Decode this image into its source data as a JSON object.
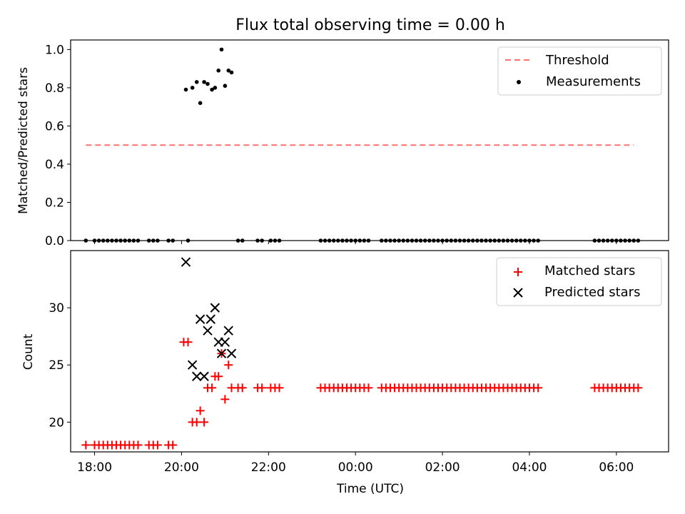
{
  "chart_data": [
    {
      "type": "scatter",
      "title": "Flux total observing time = 0.00 h",
      "ylabel": "Matched/Predicted stars",
      "xlabel": "",
      "x_unit": "hours since 18:00 UTC (ticks labeled HH:MM)",
      "xlim": [
        -0.55,
        13.2
      ],
      "ylim": [
        0.0,
        1.05
      ],
      "yticks": [
        0.0,
        0.2,
        0.4,
        0.6,
        0.8,
        1.0
      ],
      "legend_position": "top-right",
      "threshold": {
        "name": "Threshold",
        "value": 0.5,
        "x_range": [
          -0.2,
          12.4
        ],
        "color": "#ff7070"
      },
      "series": [
        {
          "name": "Measurements",
          "color": "#000000",
          "points": [
            [
              -0.2,
              0
            ],
            [
              0.0,
              0
            ],
            [
              0.1,
              0
            ],
            [
              0.2,
              0
            ],
            [
              0.3,
              0
            ],
            [
              0.4,
              0
            ],
            [
              0.5,
              0
            ],
            [
              0.6,
              0
            ],
            [
              0.7,
              0
            ],
            [
              0.8,
              0
            ],
            [
              0.9,
              0
            ],
            [
              1.0,
              0
            ],
            [
              1.25,
              0
            ],
            [
              1.35,
              0
            ],
            [
              1.45,
              0
            ],
            [
              1.7,
              0
            ],
            [
              1.8,
              0
            ],
            [
              2.15,
              0
            ],
            [
              2.1,
              0.79
            ],
            [
              2.25,
              0.8
            ],
            [
              2.35,
              0.83
            ],
            [
              2.43,
              0.72
            ],
            [
              2.52,
              0.83
            ],
            [
              2.6,
              0.82
            ],
            [
              2.7,
              0.79
            ],
            [
              2.77,
              0.8
            ],
            [
              2.85,
              0.89
            ],
            [
              2.92,
              1.0
            ],
            [
              3.0,
              0.81
            ],
            [
              3.08,
              0.89
            ],
            [
              3.15,
              0.88
            ],
            [
              3.3,
              0
            ],
            [
              3.4,
              0
            ],
            [
              3.75,
              0
            ],
            [
              3.85,
              0
            ],
            [
              4.05,
              0
            ],
            [
              4.15,
              0
            ],
            [
              4.25,
              0
            ],
            [
              5.2,
              0
            ],
            [
              5.3,
              0
            ],
            [
              5.4,
              0
            ],
            [
              5.5,
              0
            ],
            [
              5.6,
              0
            ],
            [
              5.7,
              0
            ],
            [
              5.8,
              0
            ],
            [
              5.9,
              0
            ],
            [
              6.0,
              0
            ],
            [
              6.1,
              0
            ],
            [
              6.2,
              0
            ],
            [
              6.3,
              0
            ],
            [
              6.6,
              0
            ],
            [
              6.7,
              0
            ],
            [
              6.8,
              0
            ],
            [
              6.9,
              0
            ],
            [
              7.0,
              0
            ],
            [
              7.1,
              0
            ],
            [
              7.2,
              0
            ],
            [
              7.3,
              0
            ],
            [
              7.4,
              0
            ],
            [
              7.5,
              0
            ],
            [
              7.6,
              0
            ],
            [
              7.7,
              0
            ],
            [
              7.8,
              0
            ],
            [
              7.9,
              0
            ],
            [
              8.0,
              0
            ],
            [
              8.1,
              0
            ],
            [
              8.2,
              0
            ],
            [
              8.3,
              0
            ],
            [
              8.4,
              0
            ],
            [
              8.5,
              0
            ],
            [
              8.6,
              0
            ],
            [
              8.7,
              0
            ],
            [
              8.8,
              0
            ],
            [
              8.9,
              0
            ],
            [
              9.0,
              0
            ],
            [
              9.1,
              0
            ],
            [
              9.2,
              0
            ],
            [
              9.3,
              0
            ],
            [
              9.4,
              0
            ],
            [
              9.5,
              0
            ],
            [
              9.6,
              0
            ],
            [
              9.7,
              0
            ],
            [
              9.8,
              0
            ],
            [
              9.9,
              0
            ],
            [
              10.0,
              0
            ],
            [
              10.1,
              0
            ],
            [
              10.2,
              0
            ],
            [
              11.5,
              0
            ],
            [
              11.6,
              0
            ],
            [
              11.7,
              0
            ],
            [
              11.8,
              0
            ],
            [
              11.9,
              0
            ],
            [
              12.0,
              0
            ],
            [
              12.1,
              0
            ],
            [
              12.2,
              0
            ],
            [
              12.3,
              0
            ],
            [
              12.4,
              0
            ],
            [
              12.5,
              0
            ]
          ]
        }
      ]
    },
    {
      "type": "scatter",
      "title": "",
      "ylabel": "Count",
      "xlabel": "Time (UTC)",
      "x_unit": "hours since 18:00 UTC (ticks labeled HH:MM)",
      "xlim": [
        -0.55,
        13.2
      ],
      "ylim": [
        17.4,
        35.0
      ],
      "yticks": [
        20,
        25,
        30
      ],
      "xticks": [
        0,
        2,
        4,
        6,
        8,
        10,
        12
      ],
      "xtick_labels": [
        "18:00",
        "20:00",
        "22:00",
        "00:00",
        "02:00",
        "04:00",
        "06:00"
      ],
      "legend_position": "top-right",
      "series": [
        {
          "name": "Matched stars",
          "marker": "plus",
          "color": "#ff0000",
          "points": [
            [
              -0.2,
              18
            ],
            [
              0.0,
              18
            ],
            [
              0.1,
              18
            ],
            [
              0.2,
              18
            ],
            [
              0.3,
              18
            ],
            [
              0.4,
              18
            ],
            [
              0.5,
              18
            ],
            [
              0.6,
              18
            ],
            [
              0.7,
              18
            ],
            [
              0.8,
              18
            ],
            [
              0.9,
              18
            ],
            [
              1.0,
              18
            ],
            [
              1.25,
              18
            ],
            [
              1.35,
              18
            ],
            [
              1.45,
              18
            ],
            [
              1.7,
              18
            ],
            [
              1.8,
              18
            ],
            [
              2.05,
              27
            ],
            [
              2.15,
              27
            ],
            [
              2.25,
              20
            ],
            [
              2.35,
              20
            ],
            [
              2.43,
              21
            ],
            [
              2.52,
              20
            ],
            [
              2.6,
              23
            ],
            [
              2.7,
              23
            ],
            [
              2.77,
              24
            ],
            [
              2.85,
              24
            ],
            [
              2.92,
              26
            ],
            [
              3.0,
              22
            ],
            [
              3.08,
              25
            ],
            [
              3.15,
              23
            ],
            [
              3.3,
              23
            ],
            [
              3.4,
              23
            ],
            [
              3.75,
              23
            ],
            [
              3.85,
              23
            ],
            [
              4.05,
              23
            ],
            [
              4.15,
              23
            ],
            [
              4.25,
              23
            ],
            [
              5.2,
              23
            ],
            [
              5.3,
              23
            ],
            [
              5.4,
              23
            ],
            [
              5.5,
              23
            ],
            [
              5.6,
              23
            ],
            [
              5.7,
              23
            ],
            [
              5.8,
              23
            ],
            [
              5.9,
              23
            ],
            [
              6.0,
              23
            ],
            [
              6.1,
              23
            ],
            [
              6.2,
              23
            ],
            [
              6.3,
              23
            ],
            [
              6.6,
              23
            ],
            [
              6.7,
              23
            ],
            [
              6.8,
              23
            ],
            [
              6.9,
              23
            ],
            [
              7.0,
              23
            ],
            [
              7.1,
              23
            ],
            [
              7.2,
              23
            ],
            [
              7.3,
              23
            ],
            [
              7.4,
              23
            ],
            [
              7.5,
              23
            ],
            [
              7.6,
              23
            ],
            [
              7.7,
              23
            ],
            [
              7.8,
              23
            ],
            [
              7.9,
              23
            ],
            [
              8.0,
              23
            ],
            [
              8.1,
              23
            ],
            [
              8.2,
              23
            ],
            [
              8.3,
              23
            ],
            [
              8.4,
              23
            ],
            [
              8.5,
              23
            ],
            [
              8.6,
              23
            ],
            [
              8.7,
              23
            ],
            [
              8.8,
              23
            ],
            [
              8.9,
              23
            ],
            [
              9.0,
              23
            ],
            [
              9.1,
              23
            ],
            [
              9.2,
              23
            ],
            [
              9.3,
              23
            ],
            [
              9.4,
              23
            ],
            [
              9.5,
              23
            ],
            [
              9.6,
              23
            ],
            [
              9.7,
              23
            ],
            [
              9.8,
              23
            ],
            [
              9.9,
              23
            ],
            [
              10.0,
              23
            ],
            [
              10.1,
              23
            ],
            [
              10.2,
              23
            ],
            [
              11.5,
              23
            ],
            [
              11.6,
              23
            ],
            [
              11.7,
              23
            ],
            [
              11.8,
              23
            ],
            [
              11.9,
              23
            ],
            [
              12.0,
              23
            ],
            [
              12.1,
              23
            ],
            [
              12.2,
              23
            ],
            [
              12.3,
              23
            ],
            [
              12.4,
              23
            ],
            [
              12.5,
              23
            ]
          ]
        },
        {
          "name": "Predicted stars",
          "marker": "x",
          "color": "#000000",
          "points": [
            [
              2.1,
              34
            ],
            [
              2.25,
              25
            ],
            [
              2.35,
              24
            ],
            [
              2.43,
              29
            ],
            [
              2.52,
              24
            ],
            [
              2.6,
              28
            ],
            [
              2.67,
              29
            ],
            [
              2.77,
              30
            ],
            [
              2.85,
              27
            ],
            [
              2.92,
              26
            ],
            [
              3.0,
              27
            ],
            [
              3.08,
              28
            ],
            [
              3.15,
              26
            ]
          ]
        }
      ]
    }
  ]
}
